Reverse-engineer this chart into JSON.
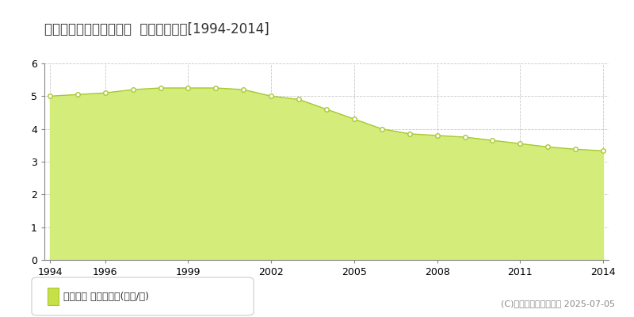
{
  "title": "刈田郡蔵王町遠刈田温泉  公示地価推移[1994-2014]",
  "years": [
    1994,
    1995,
    1996,
    1997,
    1998,
    1999,
    2000,
    2001,
    2002,
    2003,
    2004,
    2005,
    2006,
    2007,
    2008,
    2009,
    2010,
    2011,
    2012,
    2013,
    2014
  ],
  "values": [
    5.0,
    5.05,
    5.1,
    5.2,
    5.25,
    5.25,
    5.25,
    5.2,
    5.0,
    4.9,
    4.6,
    4.3,
    4.0,
    3.85,
    3.8,
    3.75,
    3.65,
    3.55,
    3.45,
    3.38,
    3.33
  ],
  "fill_color": "#d4ed7a",
  "line_color": "#a8c832",
  "marker_face": "#ffffff",
  "marker_edge": "#a8c832",
  "bg_color": "#ffffff",
  "plot_bg_color": "#ffffff",
  "grid_color": "#bbbbbb",
  "ylim": [
    0,
    6
  ],
  "yticks": [
    0,
    1,
    2,
    3,
    4,
    5,
    6
  ],
  "xtick_labels": [
    "1994",
    "1996",
    "1999",
    "2002",
    "2005",
    "2008",
    "2011",
    "2014"
  ],
  "xtick_positions": [
    1994,
    1996,
    1999,
    2002,
    2005,
    2008,
    2011,
    2014
  ],
  "legend_label": "公示地価 平均坪単価(万円/坪)",
  "legend_marker_color": "#c8e048",
  "copyright_text": "(C)土地価格ドットコム 2025-07-05",
  "title_fontsize": 12,
  "tick_fontsize": 9,
  "legend_fontsize": 9,
  "copyright_fontsize": 8
}
